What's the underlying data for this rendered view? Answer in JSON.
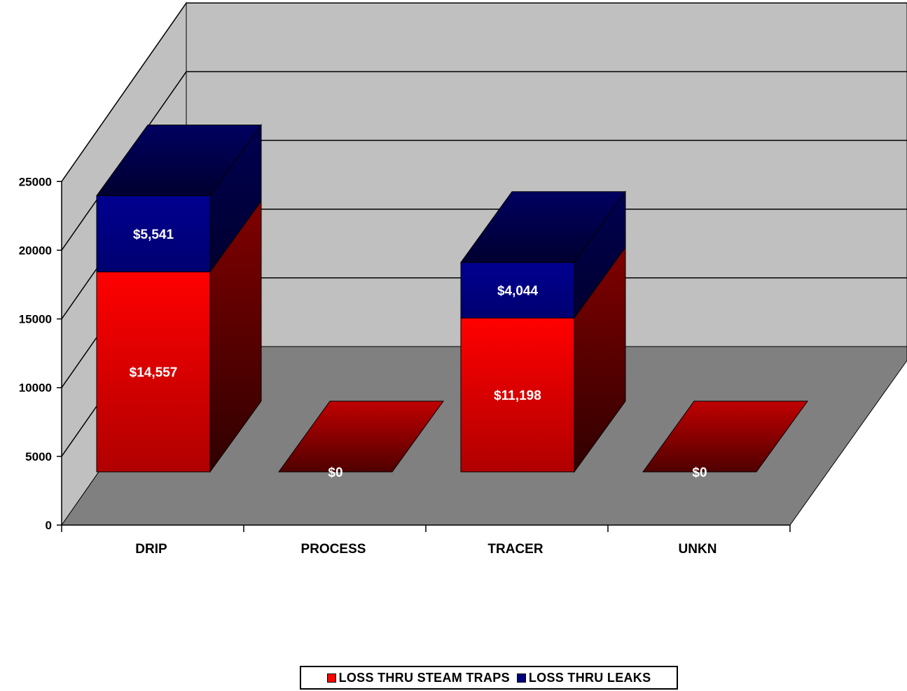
{
  "chart_data": {
    "type": "bar",
    "stacked": true,
    "three_d": true,
    "categories": [
      "DRIP",
      "PROCESS",
      "TRACER",
      "UNKN"
    ],
    "series": [
      {
        "name": "LOSS THRU STEAM TRAPS",
        "values": [
          14557,
          0,
          11198,
          0
        ],
        "labels": [
          "$14,557",
          "$0",
          "$11,198",
          "$0"
        ],
        "color": "#ff0000"
      },
      {
        "name": "LOSS THRU LEAKS",
        "values": [
          5541,
          0,
          4044,
          0
        ],
        "labels": [
          "$5,541",
          "",
          "$4,044",
          ""
        ],
        "color": "#000080"
      }
    ],
    "y_ticks": [
      "0",
      "5000",
      "10000",
      "15000",
      "20000",
      "25000"
    ],
    "ylim": [
      0,
      25000
    ],
    "grid": true,
    "legend_position": "bottom",
    "colors": {
      "back_wall": "#c0c0c0",
      "floor": "#808080"
    }
  }
}
